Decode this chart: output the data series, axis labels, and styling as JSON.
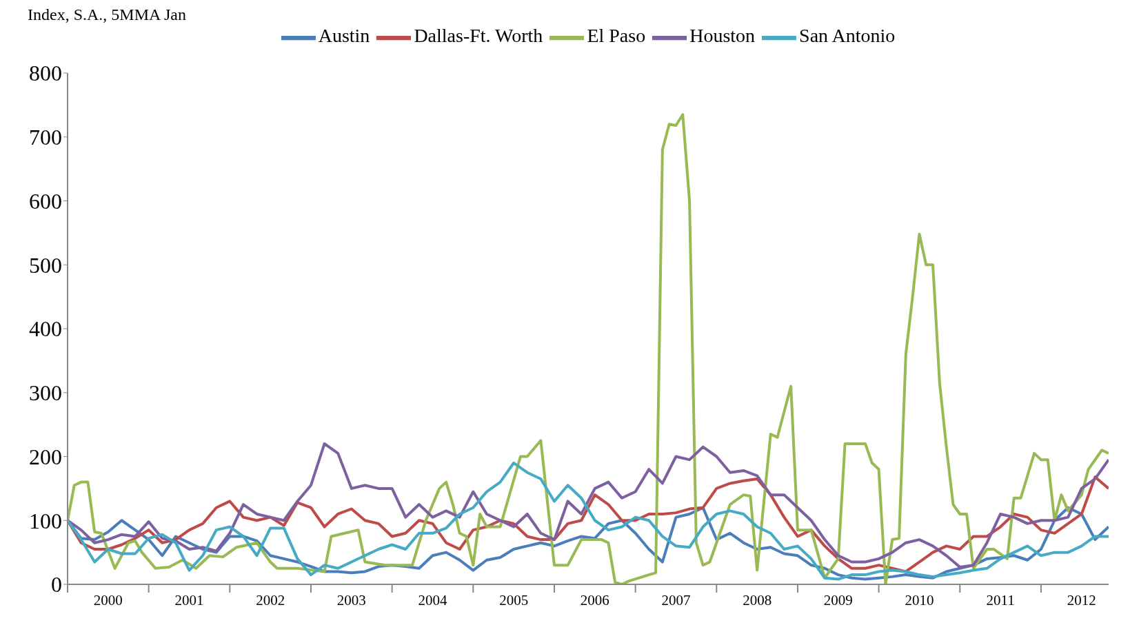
{
  "chart_data": {
    "type": "line",
    "ylabel": "Index, S.A., 5MMA Jan",
    "x": [
      "2000-01",
      "2000-03",
      "2000-05",
      "2000-07",
      "2000-09",
      "2000-11",
      "2001-01",
      "2001-03",
      "2001-05",
      "2001-07",
      "2001-09",
      "2001-11",
      "2002-01",
      "2002-03",
      "2002-05",
      "2002-07",
      "2002-09",
      "2002-11",
      "2003-01",
      "2003-03",
      "2003-05",
      "2003-07",
      "2003-09",
      "2003-11",
      "2004-01",
      "2004-03",
      "2004-05",
      "2004-07",
      "2004-09",
      "2004-11",
      "2005-01",
      "2005-03",
      "2005-05",
      "2005-07",
      "2005-09",
      "2005-11",
      "2006-01",
      "2006-03",
      "2006-05",
      "2006-07",
      "2006-09",
      "2006-11",
      "2007-01",
      "2007-03",
      "2007-05",
      "2007-07",
      "2007-09",
      "2007-11",
      "2008-01",
      "2008-03",
      "2008-05",
      "2008-07",
      "2008-09",
      "2008-11",
      "2009-01",
      "2009-03",
      "2009-05",
      "2009-07",
      "2009-09",
      "2009-11",
      "2010-01",
      "2010-03",
      "2010-05",
      "2010-07",
      "2010-09",
      "2010-11",
      "2011-01",
      "2011-03",
      "2011-05",
      "2011-07",
      "2011-09",
      "2011-11",
      "2012-01",
      "2012-03",
      "2012-05",
      "2012-07",
      "2012-09",
      "2012-11"
    ],
    "series": [
      {
        "name": "Austin",
        "color": "#4a7ebb",
        "values": [
          100,
          72,
          70,
          82,
          100,
          85,
          70,
          45,
          75,
          65,
          55,
          50,
          75,
          75,
          68,
          45,
          40,
          35,
          28,
          20,
          20,
          18,
          20,
          28,
          30,
          28,
          25,
          45,
          50,
          38,
          22,
          38,
          42,
          55,
          60,
          65,
          60,
          68,
          75,
          72,
          95,
          100,
          80,
          55,
          35,
          105,
          110,
          120,
          70,
          80,
          65,
          55,
          58,
          48,
          45,
          30,
          25,
          15,
          10,
          8,
          10,
          12,
          15,
          12,
          10,
          20,
          25,
          30,
          40,
          42,
          45,
          38,
          55,
          100,
          120,
          110,
          70,
          90
        ]
      },
      {
        "name": "Dallas-Ft. Worth",
        "color": "#be4b48",
        "values": [
          100,
          65,
          55,
          55,
          62,
          72,
          85,
          65,
          70,
          85,
          95,
          120,
          130,
          105,
          100,
          105,
          92,
          128,
          120,
          90,
          110,
          118,
          100,
          95,
          75,
          80,
          100,
          95,
          65,
          55,
          85,
          90,
          100,
          95,
          75,
          70,
          70,
          95,
          100,
          140,
          125,
          100,
          100,
          110,
          110,
          112,
          118,
          120,
          150,
          158,
          162,
          165,
          140,
          105,
          75,
          85,
          60,
          40,
          25,
          25,
          30,
          25,
          20,
          35,
          50,
          60,
          55,
          75,
          75,
          90,
          110,
          105,
          85,
          80,
          95,
          110,
          168,
          150
        ]
      },
      {
        "name": "El Paso",
        "color": "#98b954",
        "x": [
          "2000-01",
          "2000-02",
          "2000-03",
          "2000-04",
          "2000-05",
          "2000-06",
          "2000-08",
          "2000-10",
          "2000-11",
          "2000-12",
          "2001-02",
          "2001-04",
          "2001-06",
          "2001-08",
          "2001-10",
          "2001-12",
          "2002-02",
          "2002-05",
          "2002-07",
          "2002-08",
          "2002-11",
          "2003-03",
          "2003-04",
          "2003-06",
          "2003-08",
          "2003-09",
          "2003-12",
          "2004-04",
          "2004-06",
          "2004-08",
          "2004-09",
          "2004-10",
          "2004-11",
          "2004-12",
          "2005-01",
          "2005-02",
          "2005-03",
          "2005-05",
          "2005-08",
          "2005-09",
          "2005-11",
          "2006-01",
          "2006-03",
          "2006-05",
          "2006-08",
          "2006-09",
          "2006-10",
          "2006-11",
          "2006-12",
          "2007-03",
          "2007-04",
          "2007-05",
          "2007-06",
          "2007-07",
          "2007-08",
          "2007-09",
          "2007-10",
          "2007-11",
          "2007-12",
          "2008-03",
          "2008-05",
          "2008-06",
          "2008-07",
          "2008-09",
          "2008-10",
          "2008-12",
          "2009-01",
          "2009-03",
          "2009-05",
          "2009-07",
          "2009-08",
          "2009-11",
          "2009-12",
          "2010-01",
          "2010-02",
          "2010-03",
          "2010-04",
          "2010-05",
          "2010-06",
          "2010-07",
          "2010-08",
          "2010-09",
          "2010-10",
          "2010-11",
          "2010-12",
          "2011-01",
          "2011-02",
          "2011-03",
          "2011-05",
          "2011-06",
          "2011-08",
          "2011-09",
          "2011-10",
          "2011-12",
          "2012-01",
          "2012-02",
          "2012-03",
          "2012-04",
          "2012-05",
          "2012-07",
          "2012-08",
          "2012-10",
          "2012-11"
        ],
        "values": [
          100,
          155,
          160,
          160,
          82,
          80,
          25,
          65,
          68,
          50,
          25,
          27,
          38,
          25,
          45,
          43,
          58,
          65,
          35,
          25,
          25,
          20,
          75,
          80,
          85,
          35,
          30,
          30,
          100,
          150,
          160,
          125,
          80,
          75,
          30,
          110,
          90,
          90,
          200,
          200,
          225,
          30,
          30,
          70,
          70,
          65,
          3,
          0,
          5,
          15,
          18,
          680,
          720,
          718,
          735,
          600,
          65,
          30,
          35,
          125,
          140,
          138,
          22,
          235,
          230,
          310,
          85,
          85,
          10,
          40,
          220,
          220,
          190,
          180,
          0,
          70,
          72,
          360,
          450,
          548,
          500,
          500,
          315,
          215,
          125,
          110,
          110,
          25,
          55,
          55,
          40,
          135,
          135,
          205,
          195,
          195,
          100,
          140,
          115,
          140,
          180,
          210,
          205
        ]
      },
      {
        "name": "Houston",
        "color": "#7d60a0",
        "values": [
          100,
          85,
          65,
          70,
          78,
          75,
          98,
          72,
          68,
          55,
          58,
          52,
          80,
          125,
          110,
          105,
          100,
          130,
          155,
          220,
          205,
          150,
          155,
          150,
          150,
          105,
          125,
          105,
          115,
          105,
          145,
          110,
          100,
          90,
          110,
          80,
          70,
          130,
          110,
          150,
          160,
          135,
          145,
          180,
          158,
          200,
          195,
          215,
          200,
          175,
          178,
          170,
          140,
          140,
          120,
          100,
          70,
          45,
          35,
          35,
          40,
          50,
          65,
          70,
          60,
          45,
          27,
          30,
          65,
          110,
          105,
          95,
          100,
          100,
          105,
          150,
          165,
          195
        ]
      },
      {
        "name": "San Antonio",
        "color": "#46aac5",
        "values": [
          100,
          70,
          35,
          55,
          48,
          48,
          72,
          78,
          65,
          22,
          45,
          85,
          90,
          75,
          45,
          88,
          88,
          40,
          15,
          30,
          25,
          35,
          45,
          55,
          62,
          55,
          80,
          80,
          88,
          110,
          120,
          145,
          160,
          190,
          175,
          165,
          130,
          155,
          135,
          100,
          85,
          90,
          105,
          100,
          75,
          60,
          58,
          90,
          110,
          115,
          110,
          90,
          80,
          55,
          60,
          40,
          10,
          8,
          15,
          15,
          20,
          22,
          20,
          15,
          12,
          15,
          18,
          22,
          25,
          40,
          50,
          60,
          45,
          50,
          50,
          60,
          75,
          75
        ]
      }
    ],
    "xlim": [
      "2000-01",
      "2012-11"
    ],
    "xticks": [
      {
        "value": "2000-01",
        "label": null
      },
      {
        "value": "2000-07",
        "label": "2000"
      },
      {
        "value": "2001-01",
        "label": null
      },
      {
        "value": "2001-07",
        "label": "2001"
      },
      {
        "value": "2002-01",
        "label": null
      },
      {
        "value": "2002-07",
        "label": "2002"
      },
      {
        "value": "2003-01",
        "label": null
      },
      {
        "value": "2003-07",
        "label": "2003"
      },
      {
        "value": "2004-01",
        "label": null
      },
      {
        "value": "2004-07",
        "label": "2004"
      },
      {
        "value": "2005-01",
        "label": null
      },
      {
        "value": "2005-07",
        "label": "2005"
      },
      {
        "value": "2006-01",
        "label": null
      },
      {
        "value": "2006-07",
        "label": "2006"
      },
      {
        "value": "2007-01",
        "label": null
      },
      {
        "value": "2007-07",
        "label": "2007"
      },
      {
        "value": "2008-01",
        "label": null
      },
      {
        "value": "2008-07",
        "label": "2008"
      },
      {
        "value": "2009-01",
        "label": null
      },
      {
        "value": "2009-07",
        "label": "2009"
      },
      {
        "value": "2010-01",
        "label": null
      },
      {
        "value": "2010-07",
        "label": "2010"
      },
      {
        "value": "2011-01",
        "label": null
      },
      {
        "value": "2011-07",
        "label": "2011"
      },
      {
        "value": "2012-01",
        "label": null
      },
      {
        "value": "2012-07",
        "label": "2012"
      }
    ],
    "ylim": [
      0,
      800
    ],
    "yticks": [
      0,
      100,
      200,
      300,
      400,
      500,
      600,
      700,
      800
    ],
    "grid": false,
    "legend": "top",
    "marker": "none",
    "line_style": "solid"
  }
}
